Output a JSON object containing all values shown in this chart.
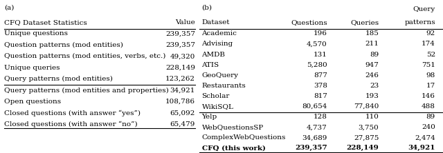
{
  "panel_a_label": "(a)",
  "panel_b_label": "(b)",
  "table_a_title": "CFQ Dataset Statistics",
  "table_a_col_header": "Value",
  "table_a_rows": [
    [
      "Unique questions",
      "239,357"
    ],
    [
      "Question patterns (mod entities)",
      "239,357"
    ],
    [
      "Question patterns (mod entities, verbs, etc.)",
      "49,320"
    ],
    [
      "Unique queries",
      "228,149"
    ],
    [
      "Query patterns (mod entities)",
      "123,262"
    ],
    [
      "Query patterns (mod entities and properties)",
      "34,921"
    ],
    [
      "Open questions",
      "108,786"
    ],
    [
      "Closed questions (with answer “yes”)",
      "65,092"
    ],
    [
      "Closed questions (with answer “no”)",
      "65,479"
    ]
  ],
  "table_a_separator_after_row": 5,
  "table_b_col_headers": [
    "Dataset",
    "Questions",
    "Queries",
    "Query\npatterns"
  ],
  "table_b_rows": [
    [
      "Academic",
      "196",
      "185",
      "92"
    ],
    [
      "Advising",
      "4,570",
      "211",
      "174"
    ],
    [
      "AMDB",
      "131",
      "89",
      "52"
    ],
    [
      "ATIS",
      "5,280",
      "947",
      "751"
    ],
    [
      "GeoQuery",
      "877",
      "246",
      "98"
    ],
    [
      "Restaurants",
      "378",
      "23",
      "17"
    ],
    [
      "Scholar",
      "817",
      "193",
      "146"
    ],
    [
      "WikiSQL",
      "80,654",
      "77,840",
      "488"
    ],
    [
      "Yelp",
      "128",
      "110",
      "89"
    ],
    [
      "WebQuestionsSP",
      "4,737",
      "3,750",
      "240"
    ],
    [
      "ComplexWebQuestions",
      "34,689",
      "27,875",
      "2,474"
    ],
    [
      "CFQ (this work)",
      "239,357",
      "228,149",
      "34,921"
    ]
  ],
  "table_b_separator_after_row": 8,
  "background_color": "#ffffff",
  "font_size": 7.5,
  "line_color": "#000000"
}
